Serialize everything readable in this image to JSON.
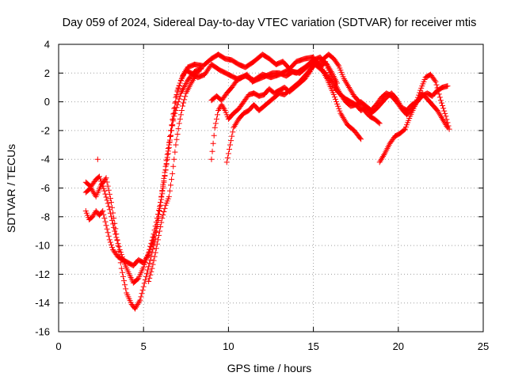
{
  "chart_data": {
    "type": "scatter",
    "title": "Day 059 of 2024, Sidereal Day-to-day VTEC variation (SDTVAR) for receiver mtis",
    "xlabel": "GPS time / hours",
    "ylabel": "SDTVAR / TECUs",
    "xlim": [
      0,
      25
    ],
    "ylim": [
      -16,
      4
    ],
    "x_ticks": [
      "0",
      "5",
      "10",
      "15",
      "20",
      "25"
    ],
    "y_ticks": [
      "-16",
      "-14",
      "-12",
      "-10",
      "-8",
      "-6",
      "-4",
      "-2",
      "0",
      "2",
      "4"
    ],
    "grid": true,
    "marker": "+",
    "series_color": "#ff0000",
    "series": [
      {
        "x": [
          1.6,
          1.9,
          2.2,
          2.4,
          2.7,
          3.0,
          3.3,
          3.6,
          3.9,
          4.2,
          4.4,
          4.7,
          5.0,
          5.3,
          5.6,
          6.0,
          6.4,
          6.8,
          7.0,
          7.3,
          7.6,
          8.0,
          8.5,
          9.0,
          9.4,
          9.8,
          10.2,
          10.6,
          11.0,
          11.5,
          12.0,
          12.4,
          12.8,
          13.2,
          13.6,
          14.0,
          14.5,
          15.0,
          15.4,
          15.8,
          16.2,
          16.6,
          17.0,
          17.4,
          17.8
        ],
        "y": [
          -5.6,
          -5.9,
          -5.4,
          -5.2,
          -6.2,
          -7.5,
          -9.0,
          -10.3,
          -11.3,
          -12.1,
          -12.6,
          -12.3,
          -11.5,
          -10.5,
          -9.2,
          -7.0,
          -4.0,
          -0.8,
          0.8,
          1.8,
          2.4,
          2.6,
          2.5,
          3.0,
          3.3,
          3.0,
          2.9,
          2.6,
          2.4,
          2.8,
          3.3,
          3.0,
          2.6,
          2.8,
          2.3,
          2.8,
          3.0,
          3.1,
          2.5,
          1.6,
          0.5,
          -0.8,
          -1.6,
          -2.0,
          -2.6
        ]
      },
      {
        "x": [
          1.6,
          1.9,
          2.2,
          2.5,
          2.8,
          3.1,
          3.4,
          3.7,
          4.0,
          4.3,
          4.5,
          4.8,
          5.1,
          5.4,
          5.7,
          6.0,
          6.3,
          6.6,
          6.9,
          7.2,
          7.5,
          7.8,
          8.2,
          8.6,
          9.0,
          9.5,
          10.0,
          10.5,
          11.0,
          11.5,
          12.0,
          12.5,
          13.0,
          13.5,
          14.0,
          14.5,
          15.0,
          15.4,
          15.8,
          16.1,
          16.4
        ],
        "y": [
          -6.3,
          -6.0,
          -6.6,
          -5.8,
          -5.3,
          -7.0,
          -9.2,
          -11.6,
          -13.3,
          -14.1,
          -14.4,
          -13.8,
          -12.4,
          -11.0,
          -9.5,
          -7.0,
          -4.5,
          -2.0,
          0.3,
          1.5,
          2.2,
          2.0,
          1.7,
          1.9,
          2.6,
          2.2,
          1.9,
          1.6,
          1.8,
          1.5,
          1.9,
          1.7,
          1.9,
          2.2,
          2.0,
          2.4,
          2.9,
          3.1,
          2.6,
          2.0,
          1.3
        ]
      },
      {
        "x": [
          1.6,
          1.8,
          2.0,
          2.2,
          2.4,
          2.6,
          2.8,
          3.0,
          3.2,
          3.5,
          3.8,
          4.1,
          4.4,
          4.7,
          5.0,
          5.3,
          5.6,
          5.9,
          6.2,
          6.5,
          6.8,
          7.2,
          7.6,
          8.0,
          8.4
        ],
        "y": [
          -7.6,
          -8.2,
          -8.0,
          -7.6,
          -7.9,
          -7.6,
          -8.6,
          -9.6,
          -10.3,
          -10.8,
          -11.0,
          -11.2,
          -11.4,
          -11.0,
          -11.2,
          -10.6,
          -9.6,
          -8.0,
          -5.6,
          -3.0,
          -1.0,
          0.6,
          1.5,
          2.1,
          2.3
        ]
      },
      {
        "x": [
          5.3,
          5.5,
          5.7,
          5.9,
          6.1,
          6.3,
          6.5,
          6.7,
          6.9,
          7.1,
          7.3,
          7.5,
          7.8,
          8.1,
          8.4
        ],
        "y": [
          -12.5,
          -11.6,
          -10.5,
          -9.3,
          -8.1,
          -7.2,
          -6.6,
          -5.0,
          -3.0,
          -1.5,
          -0.3,
          0.6,
          1.3,
          1.9,
          2.4
        ]
      },
      {
        "x": [
          9.0,
          9.3,
          9.6,
          9.9,
          10.2,
          10.5,
          10.8,
          11.1,
          11.4,
          11.8,
          12.2,
          12.6,
          13.0,
          13.4,
          13.8,
          14.2,
          14.6,
          15.0,
          15.3,
          15.6,
          15.9,
          16.2,
          16.5,
          16.8,
          17.1,
          17.4,
          17.7,
          18.0,
          18.3,
          18.6,
          18.9
        ],
        "y": [
          0.1,
          0.4,
          0.1,
          0.6,
          1.0,
          1.5,
          1.7,
          1.9,
          1.4,
          1.6,
          1.8,
          2.0,
          2.0,
          1.8,
          2.1,
          2.0,
          2.4,
          2.7,
          2.6,
          3.0,
          3.3,
          3.0,
          2.5,
          1.6,
          1.0,
          0.4,
          0.0,
          -0.6,
          -1.0,
          -1.2,
          -1.5
        ]
      },
      {
        "x": [
          9.0,
          9.2,
          9.4,
          9.6,
          9.8,
          10.0,
          10.3,
          10.6,
          10.9,
          11.2,
          11.5,
          11.8,
          12.1,
          12.4,
          12.7,
          13.0,
          13.3,
          13.6,
          13.9,
          14.2,
          14.5,
          14.8,
          15.1,
          15.4,
          15.7,
          16.0,
          16.3,
          16.6,
          16.9,
          17.2,
          17.5,
          17.8,
          18.1,
          18.4,
          18.7,
          19.0,
          19.3,
          19.6,
          19.9,
          20.2,
          20.5,
          20.8,
          21.1,
          21.4,
          21.7,
          22.0,
          22.3,
          22.6,
          22.9
        ],
        "y": [
          -4.0,
          -1.8,
          -0.6,
          -0.2,
          -0.6,
          -1.2,
          -0.8,
          -0.5,
          0.0,
          0.5,
          0.6,
          0.4,
          0.5,
          0.9,
          0.6,
          0.8,
          1.0,
          0.7,
          1.0,
          1.3,
          1.6,
          2.1,
          2.8,
          2.4,
          2.8,
          1.9,
          1.2,
          0.5,
          0.0,
          -0.3,
          -0.2,
          -0.6,
          -0.4,
          -0.8,
          -0.5,
          -0.1,
          0.3,
          0.6,
          0.2,
          -0.4,
          -0.6,
          -0.2,
          0.0,
          0.4,
          0.6,
          0.4,
          0.8,
          1.0,
          1.1
        ]
      },
      {
        "x": [
          9.9,
          10.1,
          10.3,
          10.6,
          10.9,
          11.2,
          11.5,
          11.8,
          12.1,
          12.4,
          12.7,
          13.0,
          13.3,
          13.6,
          13.9,
          14.2,
          14.5,
          14.8,
          15.1,
          15.4,
          15.7,
          16.0,
          16.3,
          16.6,
          16.9,
          17.2,
          17.5,
          17.8,
          18.1,
          18.4,
          18.7,
          19.0,
          19.3,
          19.6,
          19.9,
          20.2,
          20.5,
          20.8,
          21.1,
          21.4,
          21.7,
          22.0,
          22.3,
          22.6,
          22.9
        ],
        "y": [
          -4.2,
          -3.0,
          -1.8,
          -1.2,
          -0.8,
          -0.6,
          -0.2,
          -0.6,
          -0.3,
          0.0,
          0.3,
          0.6,
          0.5,
          0.8,
          1.1,
          1.4,
          1.8,
          2.2,
          2.6,
          2.3,
          2.0,
          1.5,
          0.9,
          0.5,
          0.2,
          0.0,
          -0.2,
          0.0,
          -0.3,
          -0.6,
          -0.2,
          0.3,
          0.6,
          0.4,
          0.0,
          -0.5,
          -0.9,
          -0.5,
          0.0,
          0.6,
          0.2,
          -0.2,
          -0.6,
          -1.2,
          -1.8
        ]
      },
      {
        "x": [
          18.9,
          19.2,
          19.5,
          19.8,
          20.1,
          20.4,
          20.7,
          21.0,
          21.3,
          21.6,
          21.9,
          22.2,
          22.5,
          22.8,
          23.0
        ],
        "y": [
          -4.2,
          -3.6,
          -2.9,
          -2.4,
          -2.2,
          -1.9,
          -1.0,
          -0.2,
          0.8,
          1.7,
          1.9,
          1.4,
          0.1,
          -1.0,
          -1.9
        ]
      }
    ]
  }
}
